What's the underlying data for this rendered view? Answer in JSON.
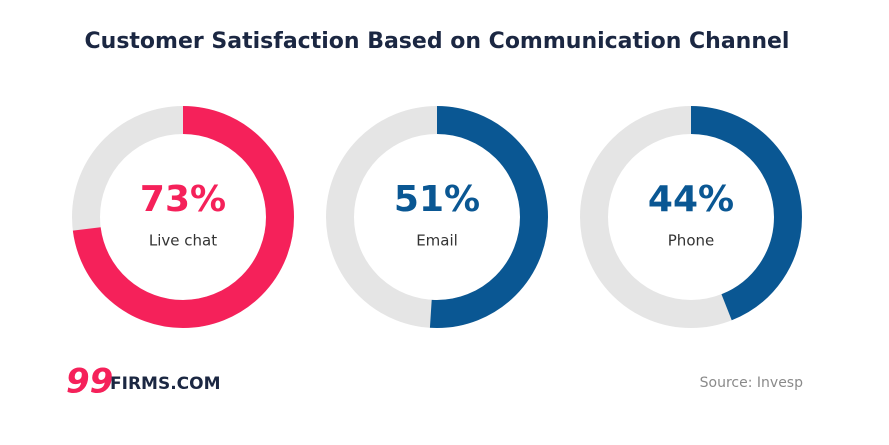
{
  "chart_data": {
    "type": "donut",
    "title": "Customer Satisfaction Based on Communication Channel",
    "categories": [
      "Live chat",
      "Email",
      "Phone"
    ],
    "values": [
      73,
      51,
      44
    ],
    "value_labels": [
      "73%",
      "51%",
      "44%"
    ],
    "colors": [
      "#f5215a",
      "#0a5793",
      "#0a5793"
    ],
    "track_color": "#e5e5e5",
    "ylim": [
      0,
      100
    ],
    "source": "Source: Invesp",
    "logo": {
      "mark": "99",
      "text": "FIRMS.COM"
    }
  }
}
